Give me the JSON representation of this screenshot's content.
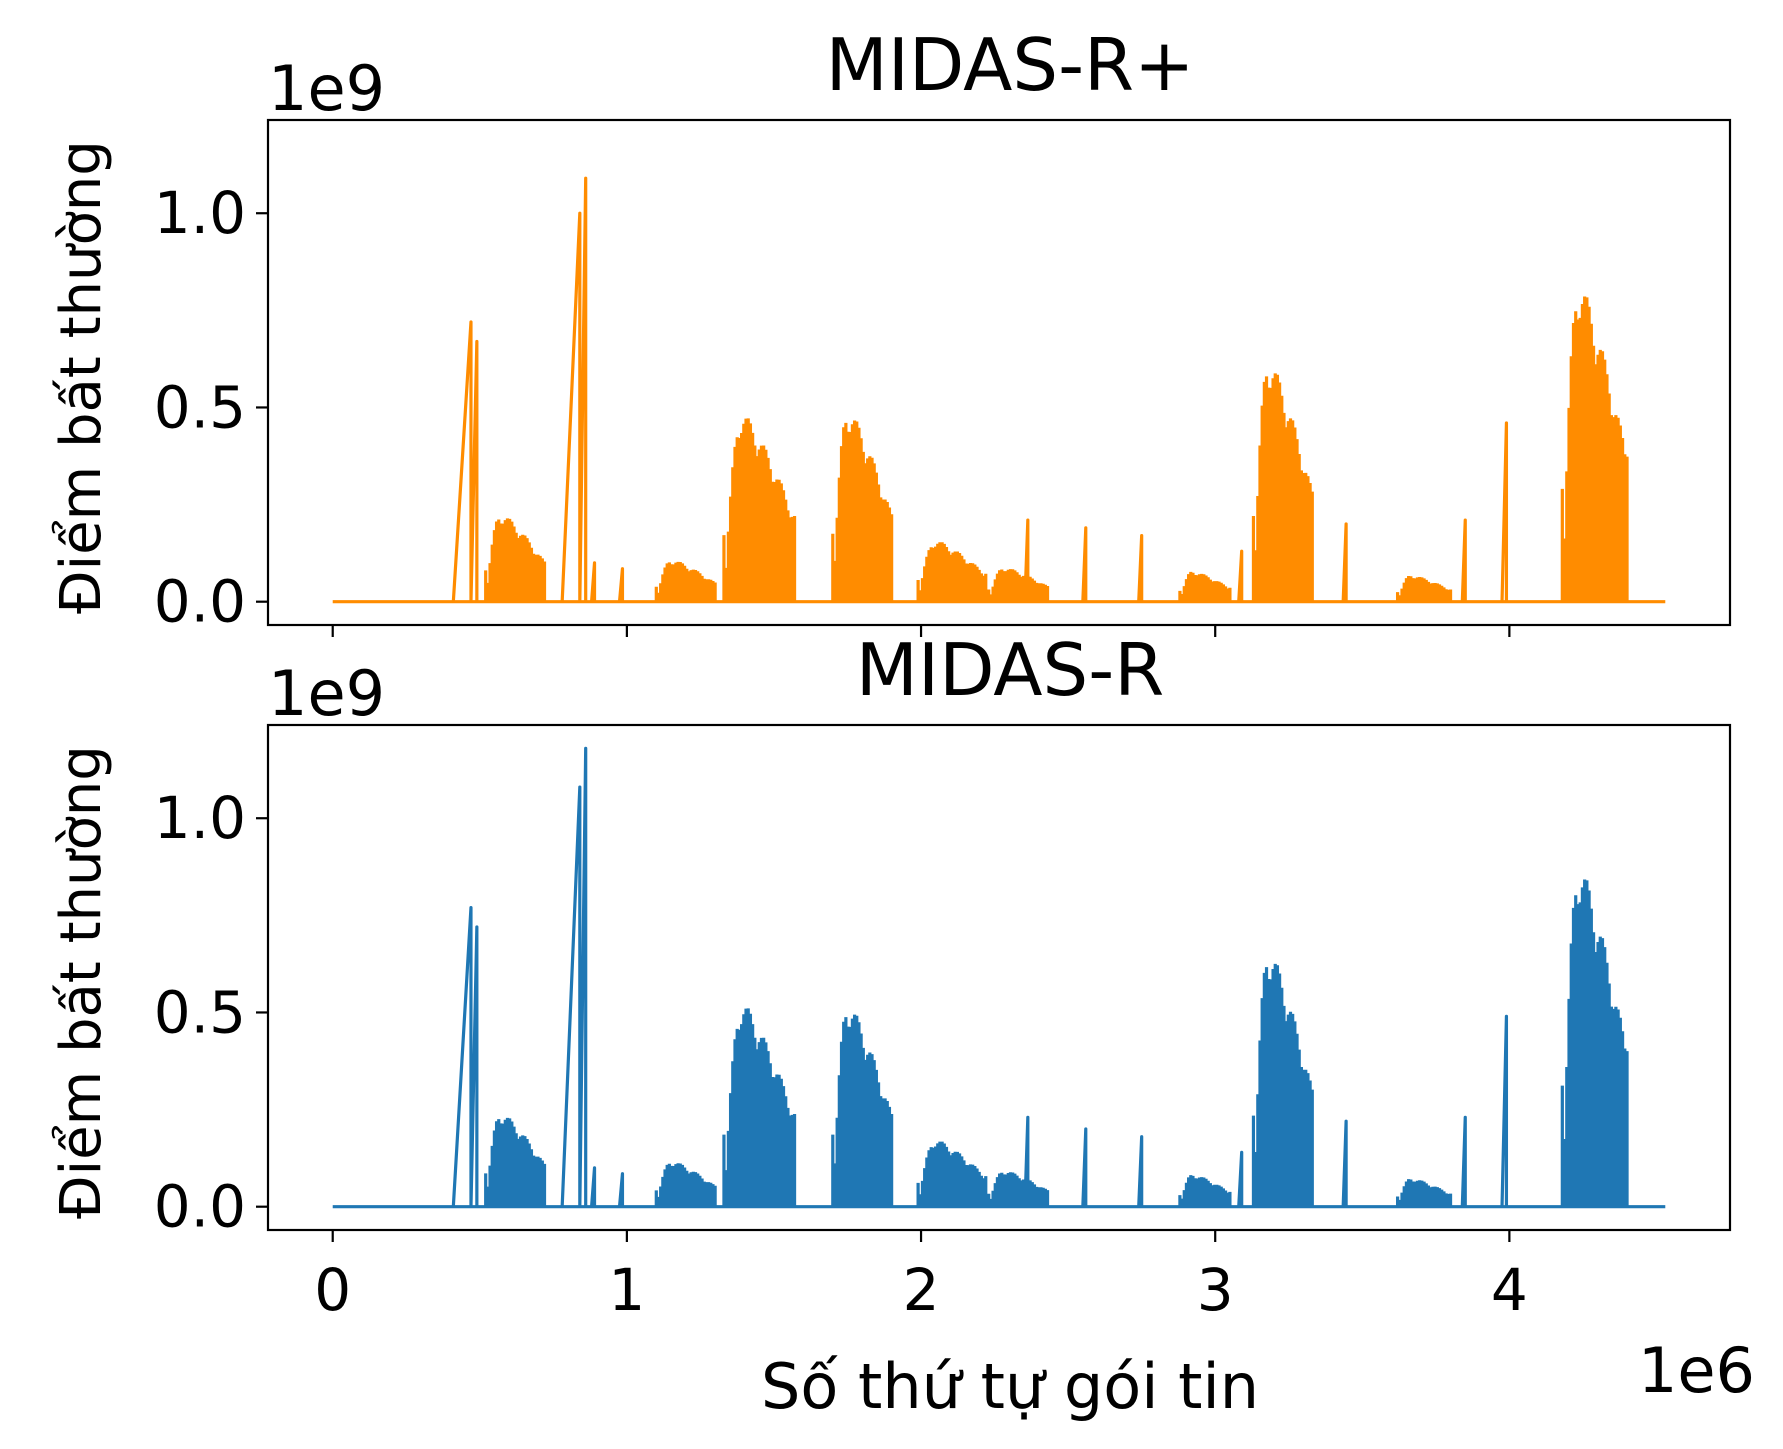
{
  "chart_data": [
    {
      "type": "line",
      "title": "MIDAS-R+",
      "ylabel": "Điểm bất thường",
      "xlabel": "",
      "y_offset_label": "1e9",
      "x_offset_label": "",
      "color": "#ff8c00",
      "xlim": [
        -220000,
        4750000
      ],
      "ylim": [
        -60000000,
        1240000000
      ],
      "x_ticks": [
        0,
        1000000,
        2000000,
        3000000,
        4000000
      ],
      "x_tick_labels": [
        "",
        "",
        "",
        "",
        ""
      ],
      "y_ticks": [
        0,
        500000000,
        1000000000
      ],
      "y_tick_labels": [
        "0.0",
        "0.5",
        "1.0"
      ],
      "grid": false,
      "series": [
        {
          "name": "",
          "peaks": [
            {
              "x": [
                410000,
                470000
              ],
              "y": 720000000
            },
            {
              "x": [
                470000,
                490000
              ],
              "y": 670000000
            },
            {
              "x": [
                780000,
                840000
              ],
              "y": 1000000000
            },
            {
              "x": [
                840000,
                860000
              ],
              "y": 1090000000
            },
            {
              "x": [
                880000,
                890000
              ],
              "y": 100000000
            },
            {
              "x": [
                975000,
                985000
              ],
              "y": 85000000
            },
            {
              "x": [
                3975000,
                3990000
              ],
              "y": 460000000
            },
            {
              "x": [
                3840000,
                3850000
              ],
              "y": 210000000
            },
            {
              "x": [
                3435000,
                3445000
              ],
              "y": 200000000
            },
            {
              "x": [
                2353000,
                2363000
              ],
              "y": 210000000
            },
            {
              "x": [
                2550000,
                2560000
              ],
              "y": 190000000
            },
            {
              "x": [
                2740000,
                2750000
              ],
              "y": 170000000
            },
            {
              "x": [
                3080000,
                3090000
              ],
              "y": 130000000
            }
          ],
          "humps": [
            {
              "x": [
                520000,
                720000
              ],
              "y": 230000000
            },
            {
              "x": [
                1100000,
                1300000
              ],
              "y": 110000000
            },
            {
              "x": [
                1330000,
                1570000
              ],
              "y": 490000000
            },
            {
              "x": [
                1700000,
                1900000
              ],
              "y": 500000000
            },
            {
              "x": [
                1990000,
                2220000
              ],
              "y": 160000000
            },
            {
              "x": [
                2230000,
                2430000
              ],
              "y": 90000000
            },
            {
              "x": [
                2880000,
                3050000
              ],
              "y": 80000000
            },
            {
              "x": [
                3130000,
                3330000
              ],
              "y": 630000000
            },
            {
              "x": [
                3620000,
                3800000
              ],
              "y": 70000000
            },
            {
              "x": [
                4180000,
                4400000
              ],
              "y": 830000000
            }
          ]
        }
      ]
    },
    {
      "type": "line",
      "title": "MIDAS-R",
      "ylabel": "Điểm bất thường",
      "xlabel": "Số thứ tự gói tin",
      "y_offset_label": "1e9",
      "x_offset_label": "1e6",
      "color": "#1f77b4",
      "xlim": [
        -220000,
        4750000
      ],
      "ylim": [
        -60000000,
        1240000000
      ],
      "x_ticks": [
        0,
        1000000,
        2000000,
        3000000,
        4000000
      ],
      "x_tick_labels": [
        "0",
        "1",
        "2",
        "3",
        "4"
      ],
      "y_ticks": [
        0,
        500000000,
        1000000000
      ],
      "y_tick_labels": [
        "0.0",
        "0.5",
        "1.0"
      ],
      "grid": false,
      "series": [
        {
          "name": "",
          "peaks": [
            {
              "x": [
                410000,
                470000
              ],
              "y": 770000000
            },
            {
              "x": [
                470000,
                490000
              ],
              "y": 720000000
            },
            {
              "x": [
                780000,
                840000
              ],
              "y": 1080000000
            },
            {
              "x": [
                840000,
                860000
              ],
              "y": 1180000000
            },
            {
              "x": [
                880000,
                890000
              ],
              "y": 100000000
            },
            {
              "x": [
                975000,
                985000
              ],
              "y": 85000000
            },
            {
              "x": [
                3975000,
                3990000
              ],
              "y": 490000000
            },
            {
              "x": [
                3840000,
                3850000
              ],
              "y": 230000000
            },
            {
              "x": [
                3435000,
                3445000
              ],
              "y": 220000000
            },
            {
              "x": [
                2353000,
                2363000
              ],
              "y": 230000000
            },
            {
              "x": [
                2550000,
                2560000
              ],
              "y": 200000000
            },
            {
              "x": [
                2740000,
                2750000
              ],
              "y": 180000000
            },
            {
              "x": [
                3080000,
                3090000
              ],
              "y": 140000000
            }
          ],
          "humps": [
            {
              "x": [
                520000,
                720000
              ],
              "y": 245000000
            },
            {
              "x": [
                1100000,
                1300000
              ],
              "y": 120000000
            },
            {
              "x": [
                1330000,
                1570000
              ],
              "y": 530000000
            },
            {
              "x": [
                1700000,
                1900000
              ],
              "y": 530000000
            },
            {
              "x": [
                1990000,
                2220000
              ],
              "y": 175000000
            },
            {
              "x": [
                2230000,
                2430000
              ],
              "y": 95000000
            },
            {
              "x": [
                2880000,
                3050000
              ],
              "y": 85000000
            },
            {
              "x": [
                3130000,
                3330000
              ],
              "y": 670000000
            },
            {
              "x": [
                3620000,
                3800000
              ],
              "y": 75000000
            },
            {
              "x": [
                4180000,
                4400000
              ],
              "y": 890000000
            }
          ]
        }
      ]
    }
  ]
}
